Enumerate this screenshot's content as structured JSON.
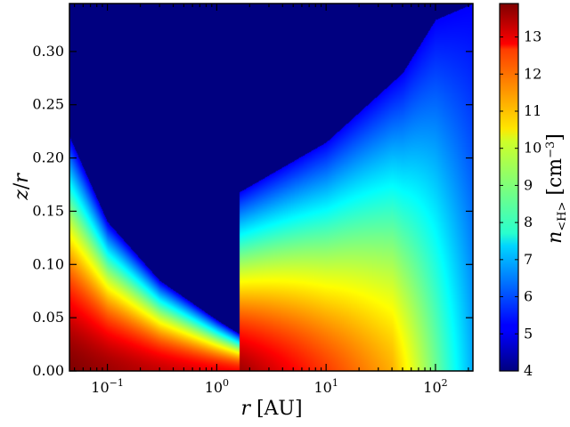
{
  "chart_data": {
    "type": "heatmap",
    "title": "",
    "xlabel": "r [AU]",
    "ylabel": "z/r",
    "xscale": "log",
    "xlim": [
      0.045,
      220
    ],
    "ylim": [
      0.0,
      0.345
    ],
    "x_tick_labels": [
      {
        "value": 0.1,
        "base": "10",
        "exp": "−1"
      },
      {
        "value": 1,
        "base": "10",
        "exp": "0"
      },
      {
        "value": 10,
        "base": "10",
        "exp": "1"
      },
      {
        "value": 100,
        "base": "10",
        "exp": "2"
      }
    ],
    "y_ticks": [
      0.0,
      0.05,
      0.1,
      0.15,
      0.2,
      0.25,
      0.3
    ],
    "y_tick_labels": [
      "0.00",
      "0.05",
      "0.10",
      "0.15",
      "0.20",
      "0.25",
      "0.30"
    ],
    "colorbar": {
      "label": "n<H> [cm−3]",
      "label_main": "n",
      "label_sub": "<H>",
      "label_unit": "[cm",
      "label_exp": "−3",
      "label_close": "]",
      "range": [
        4,
        13.9
      ],
      "ticks": [
        4,
        5,
        6,
        7,
        8,
        9,
        10,
        11,
        12,
        13
      ],
      "tick_labels": [
        "4",
        "5",
        "6",
        "7",
        "8",
        "9",
        "10",
        "11",
        "12",
        "13"
      ],
      "colormap": "jet"
    },
    "features": {
      "inner_disk_edge_r_au": 0.045,
      "gap_r_au": 1.6,
      "inner_surface_zr": [
        [
          0.045,
          0.22
        ],
        [
          0.1,
          0.14
        ],
        [
          0.3,
          0.085
        ],
        [
          1.0,
          0.048
        ],
        [
          1.6,
          0.035
        ]
      ],
      "outer_surface_zr": [
        [
          1.6,
          0.168
        ],
        [
          10,
          0.215
        ],
        [
          50,
          0.28
        ],
        [
          100,
          0.33
        ],
        [
          220,
          0.345
        ]
      ],
      "max_log_density": 13.9
    }
  }
}
